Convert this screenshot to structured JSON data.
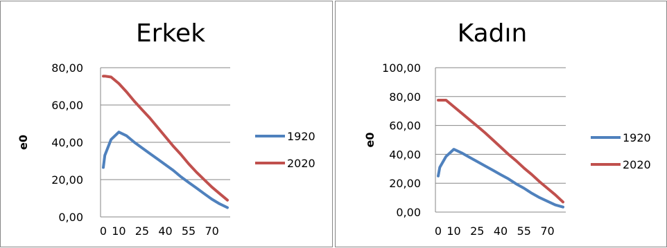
{
  "chart_data": [
    {
      "type": "line",
      "title": "Erkek",
      "ylabel": "e0",
      "xlabel": "",
      "ylim": [
        0,
        80
      ],
      "yticks": [
        "0,00",
        "20,00",
        "40,00",
        "60,00",
        "80,00"
      ],
      "ytick_values": [
        0,
        20,
        40,
        60,
        80
      ],
      "xticks": [
        "0",
        "10",
        "25",
        "40",
        "55",
        "70"
      ],
      "xtick_values": [
        0,
        10,
        25,
        40,
        55,
        70
      ],
      "grid": true,
      "legend": "right",
      "x": [
        0,
        1,
        5,
        10,
        15,
        20,
        25,
        30,
        35,
        40,
        45,
        50,
        55,
        60,
        65,
        70,
        75,
        80
      ],
      "series": [
        {
          "name": "1920",
          "color": "#4F81BD",
          "values": [
            26.5,
            33,
            41.5,
            45.5,
            43.5,
            40,
            37,
            34,
            31,
            28,
            25,
            21.5,
            18.5,
            15.5,
            12.5,
            9.5,
            7,
            5
          ]
        },
        {
          "name": "2020",
          "color": "#C0504D",
          "values": [
            75.5,
            75.5,
            75,
            71.5,
            67,
            62,
            57.5,
            53,
            48,
            43,
            38,
            33.5,
            28.5,
            24,
            20,
            16,
            12.5,
            9
          ]
        }
      ]
    },
    {
      "type": "line",
      "title": "Kadın",
      "ylabel": "e0",
      "xlabel": "",
      "ylim": [
        0,
        100
      ],
      "yticks": [
        "0,00",
        "20,00",
        "40,00",
        "60,00",
        "80,00",
        "100,00"
      ],
      "ytick_values": [
        0,
        20,
        40,
        60,
        80,
        100
      ],
      "xticks": [
        "0",
        "10",
        "25",
        "40",
        "55",
        "70"
      ],
      "xtick_values": [
        0,
        10,
        25,
        40,
        55,
        70
      ],
      "grid": true,
      "legend": "right",
      "x": [
        0,
        1,
        5,
        10,
        15,
        20,
        25,
        30,
        35,
        40,
        45,
        50,
        55,
        60,
        65,
        70,
        75,
        80
      ],
      "series": [
        {
          "name": "1920",
          "color": "#4F81BD",
          "values": [
            25,
            31,
            38.5,
            43.5,
            41,
            38,
            35,
            32,
            29,
            26,
            23,
            19.5,
            16.5,
            13,
            10,
            7.5,
            5,
            3.5
          ]
        },
        {
          "name": "2020",
          "color": "#C0504D",
          "values": [
            77.5,
            77.5,
            77.5,
            73,
            68.5,
            64,
            59.5,
            55,
            50,
            45,
            40,
            35.5,
            30.5,
            26,
            21,
            16.5,
            12,
            7
          ]
        }
      ]
    }
  ]
}
